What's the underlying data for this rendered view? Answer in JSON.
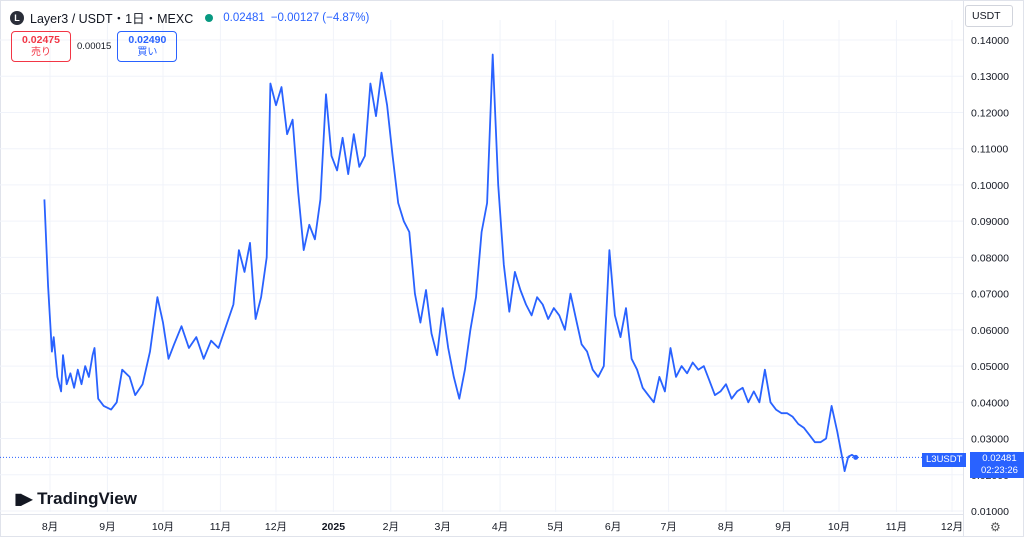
{
  "header": {
    "logo_text": "L",
    "title": "Layer3 / USDT・1日・MEXC",
    "last_price": "0.02481",
    "change": "−0.00127 (−4.87%)"
  },
  "trade": {
    "sell_price": "0.02475",
    "sell_label": "売り",
    "spread": "0.00015",
    "buy_price": "0.02490",
    "buy_label": "買い"
  },
  "currency_label": "USDT",
  "branding": "TradingView",
  "price_label": {
    "symbol": "L3USDT",
    "price": "0.02481",
    "countdown": "02:23:26"
  },
  "colors": {
    "line": "#2962ff",
    "grid": "#f0f3fa",
    "axis_text": "#131722"
  },
  "chart_data": {
    "type": "line",
    "title": "",
    "xlabel": "",
    "ylabel": "",
    "ylim": [
      0.01,
      0.14
    ],
    "yticks": [
      "0.01000",
      "0.02000",
      "0.03000",
      "0.04000",
      "0.05000",
      "0.06000",
      "0.07000",
      "0.08000",
      "0.09000",
      "0.10000",
      "0.11000",
      "0.12000",
      "0.13000",
      "0.14000"
    ],
    "xticks": [
      "8月",
      "9月",
      "10月",
      "11月",
      "12月",
      "2025",
      "2月",
      "3月",
      "4月",
      "5月",
      "6月",
      "7月",
      "8月",
      "9月",
      "10月",
      "11月",
      "12月"
    ],
    "grid": true,
    "series": [
      {
        "values": [
          [
            "2024-07-29",
            0.096
          ],
          [
            "2024-07-31",
            0.072
          ],
          [
            "2024-08-02",
            0.054
          ],
          [
            "2024-08-03",
            0.058
          ],
          [
            "2024-08-05",
            0.047
          ],
          [
            "2024-08-07",
            0.043
          ],
          [
            "2024-08-08",
            0.053
          ],
          [
            "2024-08-10",
            0.045
          ],
          [
            "2024-08-12",
            0.048
          ],
          [
            "2024-08-14",
            0.044
          ],
          [
            "2024-08-16",
            0.049
          ],
          [
            "2024-08-18",
            0.045
          ],
          [
            "2024-08-20",
            0.05
          ],
          [
            "2024-08-22",
            0.047
          ],
          [
            "2024-08-24",
            0.053
          ],
          [
            "2024-08-25",
            0.055
          ],
          [
            "2024-08-27",
            0.041
          ],
          [
            "2024-08-30",
            0.039
          ],
          [
            "2024-09-03",
            0.038
          ],
          [
            "2024-09-06",
            0.04
          ],
          [
            "2024-09-09",
            0.049
          ],
          [
            "2024-09-13",
            0.047
          ],
          [
            "2024-09-16",
            0.042
          ],
          [
            "2024-09-20",
            0.045
          ],
          [
            "2024-09-24",
            0.054
          ],
          [
            "2024-09-28",
            0.069
          ],
          [
            "2024-10-01",
            0.062
          ],
          [
            "2024-10-04",
            0.052
          ],
          [
            "2024-10-07",
            0.056
          ],
          [
            "2024-10-11",
            0.061
          ],
          [
            "2024-10-15",
            0.055
          ],
          [
            "2024-10-19",
            0.058
          ],
          [
            "2024-10-23",
            0.052
          ],
          [
            "2024-10-27",
            0.057
          ],
          [
            "2024-10-31",
            0.055
          ],
          [
            "2024-11-04",
            0.061
          ],
          [
            "2024-11-08",
            0.067
          ],
          [
            "2024-11-11",
            0.082
          ],
          [
            "2024-11-14",
            0.076
          ],
          [
            "2024-11-17",
            0.084
          ],
          [
            "2024-11-20",
            0.063
          ],
          [
            "2024-11-23",
            0.069
          ],
          [
            "2024-11-26",
            0.08
          ],
          [
            "2024-11-28",
            0.128
          ],
          [
            "2024-12-01",
            0.122
          ],
          [
            "2024-12-04",
            0.127
          ],
          [
            "2024-12-07",
            0.114
          ],
          [
            "2024-12-10",
            0.118
          ],
          [
            "2024-12-13",
            0.098
          ],
          [
            "2024-12-16",
            0.082
          ],
          [
            "2024-12-19",
            0.089
          ],
          [
            "2024-12-22",
            0.085
          ],
          [
            "2024-12-25",
            0.096
          ],
          [
            "2024-12-28",
            0.125
          ],
          [
            "2024-12-31",
            0.108
          ],
          [
            "2025-01-03",
            0.104
          ],
          [
            "2025-01-06",
            0.113
          ],
          [
            "2025-01-09",
            0.103
          ],
          [
            "2025-01-12",
            0.114
          ],
          [
            "2025-01-15",
            0.105
          ],
          [
            "2025-01-18",
            0.108
          ],
          [
            "2025-01-21",
            0.128
          ],
          [
            "2025-01-24",
            0.119
          ],
          [
            "2025-01-27",
            0.131
          ],
          [
            "2025-01-30",
            0.122
          ],
          [
            "2025-02-02",
            0.108
          ],
          [
            "2025-02-05",
            0.095
          ],
          [
            "2025-02-08",
            0.09
          ],
          [
            "2025-02-11",
            0.087
          ],
          [
            "2025-02-14",
            0.07
          ],
          [
            "2025-02-17",
            0.062
          ],
          [
            "2025-02-20",
            0.071
          ],
          [
            "2025-02-23",
            0.059
          ],
          [
            "2025-02-26",
            0.053
          ],
          [
            "2025-03-01",
            0.066
          ],
          [
            "2025-03-04",
            0.055
          ],
          [
            "2025-03-07",
            0.047
          ],
          [
            "2025-03-10",
            0.041
          ],
          [
            "2025-03-13",
            0.049
          ],
          [
            "2025-03-16",
            0.06
          ],
          [
            "2025-03-19",
            0.069
          ],
          [
            "2025-03-22",
            0.087
          ],
          [
            "2025-03-25",
            0.095
          ],
          [
            "2025-03-28",
            0.136
          ],
          [
            "2025-03-31",
            0.1
          ],
          [
            "2025-04-03",
            0.078
          ],
          [
            "2025-04-06",
            0.065
          ],
          [
            "2025-04-09",
            0.076
          ],
          [
            "2025-04-12",
            0.071
          ],
          [
            "2025-04-15",
            0.067
          ],
          [
            "2025-04-18",
            0.064
          ],
          [
            "2025-04-21",
            0.069
          ],
          [
            "2025-04-24",
            0.067
          ],
          [
            "2025-04-27",
            0.063
          ],
          [
            "2025-04-30",
            0.066
          ],
          [
            "2025-05-03",
            0.064
          ],
          [
            "2025-05-06",
            0.06
          ],
          [
            "2025-05-09",
            0.07
          ],
          [
            "2025-05-12",
            0.063
          ],
          [
            "2025-05-15",
            0.056
          ],
          [
            "2025-05-18",
            0.054
          ],
          [
            "2025-05-21",
            0.049
          ],
          [
            "2025-05-24",
            0.047
          ],
          [
            "2025-05-27",
            0.05
          ],
          [
            "2025-05-30",
            0.082
          ],
          [
            "2025-06-02",
            0.064
          ],
          [
            "2025-06-05",
            0.058
          ],
          [
            "2025-06-08",
            0.066
          ],
          [
            "2025-06-11",
            0.052
          ],
          [
            "2025-06-14",
            0.049
          ],
          [
            "2025-06-17",
            0.044
          ],
          [
            "2025-06-20",
            0.042
          ],
          [
            "2025-06-23",
            0.04
          ],
          [
            "2025-06-26",
            0.047
          ],
          [
            "2025-06-29",
            0.043
          ],
          [
            "2025-07-02",
            0.055
          ],
          [
            "2025-07-05",
            0.047
          ],
          [
            "2025-07-08",
            0.05
          ],
          [
            "2025-07-11",
            0.048
          ],
          [
            "2025-07-14",
            0.051
          ],
          [
            "2025-07-17",
            0.049
          ],
          [
            "2025-07-20",
            0.05
          ],
          [
            "2025-07-23",
            0.046
          ],
          [
            "2025-07-26",
            0.042
          ],
          [
            "2025-07-29",
            0.043
          ],
          [
            "2025-08-01",
            0.045
          ],
          [
            "2025-08-04",
            0.041
          ],
          [
            "2025-08-07",
            0.043
          ],
          [
            "2025-08-10",
            0.044
          ],
          [
            "2025-08-13",
            0.04
          ],
          [
            "2025-08-16",
            0.043
          ],
          [
            "2025-08-19",
            0.04
          ],
          [
            "2025-08-22",
            0.049
          ],
          [
            "2025-08-25",
            0.04
          ],
          [
            "2025-08-28",
            0.038
          ],
          [
            "2025-08-31",
            0.037
          ],
          [
            "2025-09-03",
            0.037
          ],
          [
            "2025-09-06",
            0.036
          ],
          [
            "2025-09-09",
            0.034
          ],
          [
            "2025-09-12",
            0.033
          ],
          [
            "2025-09-15",
            0.031
          ],
          [
            "2025-09-18",
            0.029
          ],
          [
            "2025-09-21",
            0.029
          ],
          [
            "2025-09-24",
            0.03
          ],
          [
            "2025-09-27",
            0.039
          ],
          [
            "2025-09-30",
            0.032
          ],
          [
            "2025-10-03",
            0.024
          ],
          [
            "2025-10-04",
            0.021
          ],
          [
            "2025-10-06",
            0.025
          ],
          [
            "2025-10-08",
            0.0255
          ],
          [
            "2025-10-10",
            0.0248
          ]
        ]
      }
    ]
  }
}
